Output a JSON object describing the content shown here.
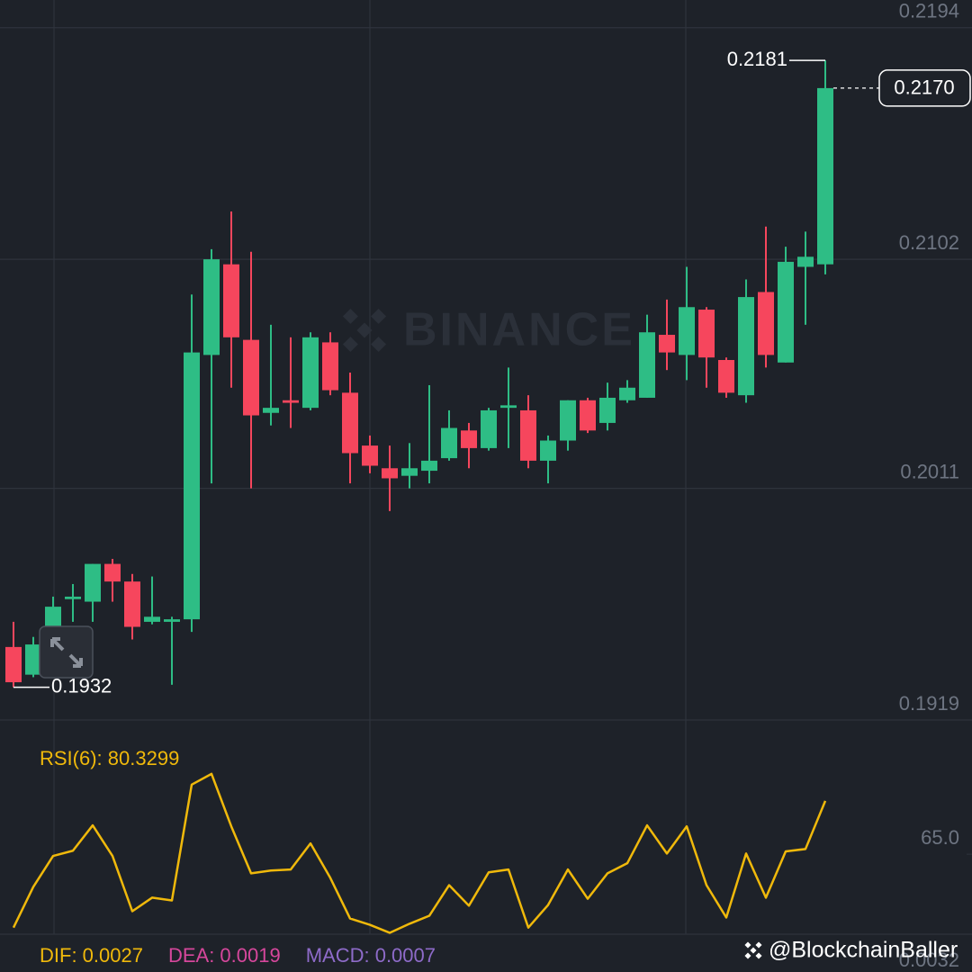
{
  "chart_data": [
    {
      "type": "candlestick",
      "open": [
        0.1948,
        0.1937,
        0.1956,
        0.1967,
        0.1966,
        0.1981,
        0.1974,
        0.1958,
        0.1958,
        0.1959,
        0.2064,
        0.21,
        0.207,
        0.2041,
        0.2046,
        0.2043,
        0.2069,
        0.2049,
        0.2028,
        0.2019,
        0.2016,
        0.2018,
        0.2023,
        0.2034,
        0.2027,
        0.2043,
        0.2042,
        0.2022,
        0.203,
        0.2046,
        0.2037,
        0.2046,
        0.2047,
        0.2072,
        0.2064,
        0.2082,
        0.2062,
        0.2048,
        0.2089,
        0.2061,
        0.2099,
        0.21
      ],
      "high": [
        0.1958,
        0.1952,
        0.1968,
        0.1973,
        0.1981,
        0.1983,
        0.1977,
        0.1976,
        0.196,
        0.2088,
        0.2106,
        0.2121,
        0.2105,
        0.2076,
        0.2071,
        0.2073,
        0.2073,
        0.2057,
        0.2032,
        0.2028,
        0.2029,
        0.2052,
        0.2042,
        0.2037,
        0.2043,
        0.2059,
        0.2048,
        0.2032,
        0.2046,
        0.2047,
        0.2053,
        0.2054,
        0.208,
        0.2086,
        0.2099,
        0.2083,
        0.2063,
        0.2094,
        0.2115,
        0.2107,
        0.2113,
        0.2181
      ],
      "low": [
        0.1932,
        0.1936,
        0.1955,
        0.1958,
        0.1958,
        0.1966,
        0.1951,
        0.1957,
        0.1933,
        0.1954,
        0.2013,
        0.2051,
        0.2011,
        0.2036,
        0.2035,
        0.2042,
        0.2048,
        0.2013,
        0.2017,
        0.2002,
        0.2011,
        0.2013,
        0.2022,
        0.2019,
        0.2026,
        0.2027,
        0.2019,
        0.2013,
        0.2026,
        0.2033,
        0.2034,
        0.2045,
        0.2047,
        0.2058,
        0.2054,
        0.2051,
        0.2047,
        0.2045,
        0.2059,
        0.2061,
        0.2076,
        0.2096
      ],
      "close": [
        0.1934,
        0.1949,
        0.1964,
        0.1968,
        0.1981,
        0.1974,
        0.1956,
        0.196,
        0.1959,
        0.2065,
        0.2102,
        0.2071,
        0.204,
        0.2043,
        0.2045,
        0.2071,
        0.205,
        0.2025,
        0.202,
        0.2015,
        0.2019,
        0.2022,
        0.2035,
        0.2027,
        0.2042,
        0.2044,
        0.2022,
        0.203,
        0.2046,
        0.2034,
        0.2047,
        0.2051,
        0.2073,
        0.2065,
        0.2083,
        0.2063,
        0.2049,
        0.2087,
        0.2064,
        0.2101,
        0.2103,
        0.217
      ],
      "ylim": [
        0.1919,
        0.2205
      ],
      "yticks": [
        0.1919,
        0.2011,
        0.2102,
        0.2194
      ],
      "grid": true,
      "up_color": "#2ebd85",
      "down_color": "#f6465d",
      "high_label": "0.2181",
      "low_label": "0.1932",
      "last_price_label": "0.2170",
      "watermark": "BINANCE"
    },
    {
      "type": "line",
      "title": "RSI(6): 80.3299",
      "values": [
        43.9,
        55.6,
        64.5,
        66.0,
        73.3,
        64.5,
        48.6,
        52.5,
        51.7,
        85.0,
        88.1,
        73.0,
        59.5,
        60.3,
        60.6,
        68.1,
        58.2,
        46.5,
        44.7,
        42.4,
        45.0,
        47.3,
        56.1,
        50.2,
        59.8,
        60.6,
        43.9,
        50.4,
        60.6,
        52.2,
        59.5,
        62.4,
        73.3,
        65.2,
        73.0,
        56.1,
        46.8,
        65.2,
        52.5,
        65.8,
        66.5,
        80.3299
      ],
      "color": "#f0b90b",
      "ylim": [
        42,
        101
      ],
      "yticks": [
        {
          "value": 65,
          "label": "65.0"
        }
      ]
    }
  ],
  "footer": {
    "indicators": [
      {
        "label": "DIF: 0.0027",
        "color": "#f0b90b"
      },
      {
        "label": "DEA: 0.0019",
        "color": "#d6479c"
      },
      {
        "label": "MACD: 0.0007",
        "color": "#8e6bc9"
      }
    ],
    "macd_axis_label": "0.0032",
    "handle": "@BlockchainBaller"
  }
}
